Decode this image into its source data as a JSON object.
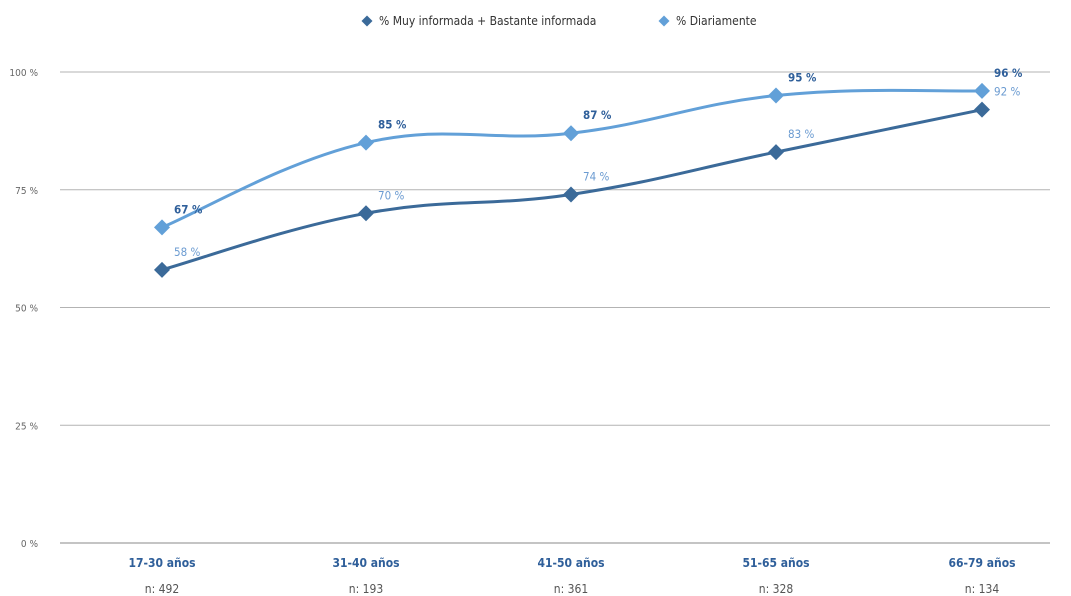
{
  "chart_data": {
    "type": "line",
    "categories": [
      "17-30 años",
      "31-40 años",
      "41-50 años",
      "51-65 años",
      "66-79 años"
    ],
    "sample_sizes": [
      "n: 492",
      "n: 193",
      "n: 361",
      "n: 328",
      "n: 134"
    ],
    "ylim": [
      0,
      100
    ],
    "yticks": [
      0,
      25,
      50,
      75,
      100
    ],
    "ytick_labels": [
      "0 %",
      "25 %",
      "50 %",
      "75 %",
      "100 %"
    ],
    "grid": true,
    "legend_position": "top-center",
    "series": [
      {
        "name": "% Muy informada + Bastante informada",
        "values": [
          58,
          70,
          74,
          83,
          92
        ],
        "labels": [
          "58 %",
          "70 %",
          "74 %",
          "83 %",
          "92 %"
        ],
        "color": "#3b6a99",
        "marker": "diamond"
      },
      {
        "name": "% Diariamente",
        "values": [
          67,
          85,
          87,
          95,
          96
        ],
        "labels": [
          "67 %",
          "85 %",
          "87 %",
          "95 %",
          "96 %"
        ],
        "color": "#62a0d8",
        "marker": "diamond"
      }
    ]
  }
}
